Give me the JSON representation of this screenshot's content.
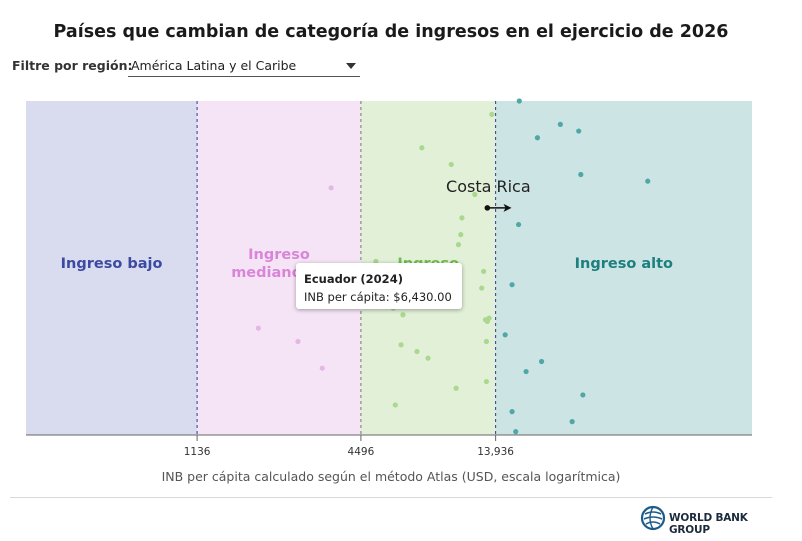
{
  "title": "Países que cambian de categoría de ingresos en el ejercicio de 2026",
  "filter": {
    "label": "Filtre por región:",
    "selected": "América Latina y el Caribe"
  },
  "logo": {
    "icon": "globe-icon",
    "text": "WORLD BANK GROUP"
  },
  "tooltip": {
    "title": "Ecuador (2024)",
    "body": "INB per cápita: $6,430.00"
  },
  "chart_data": {
    "type": "scatter",
    "title": "Países que cambian de categoría de ingresos en el ejercicio de 2026",
    "xlabel": "INB per cápita calculado según el método Atlas (USD, escala logarítmica)",
    "ylabel": "",
    "xscale": "log",
    "xlim": [
      270,
      120000
    ],
    "grid": false,
    "thresholds": [
      {
        "value": 1136,
        "label": "1136"
      },
      {
        "value": 4496,
        "label": "4496"
      },
      {
        "value": 13936,
        "label": "13,936"
      }
    ],
    "bands": [
      {
        "name": "Ingreso bajo",
        "range": [
          270,
          1136
        ],
        "fill": "#d9dbef",
        "text_color": "#3d4aa1"
      },
      {
        "name": "Ingreso mediano bajo",
        "range": [
          1136,
          4496
        ],
        "fill": "#f5e4f6",
        "text_color": "#d985d8"
      },
      {
        "name": "Ingreso mediano alto",
        "range": [
          4496,
          13936
        ],
        "fill": "#e2f0d8",
        "text_color": "#6fbf4c"
      },
      {
        "name": "Ingreso alto",
        "range": [
          13936,
          120000
        ],
        "fill": "#cce4e4",
        "text_color": "#1e7f7f"
      }
    ],
    "band_label_lines": [
      [
        "Ingreso bajo"
      ],
      [
        "Ingreso",
        "mediano ba"
      ],
      [
        "Ingreso"
      ],
      [
        "Ingreso alto"
      ]
    ],
    "highlight": {
      "label": "Costa Rica",
      "from": 13000,
      "to": 15400,
      "y": 0.68
    },
    "series": [
      {
        "color": "#e3b8e4",
        "points": [
          {
            "x": 3500,
            "y": 0.74
          },
          {
            "x": 1900,
            "y": 0.32
          },
          {
            "x": 2650,
            "y": 0.28
          },
          {
            "x": 3250,
            "y": 0.2
          },
          {
            "x": 4300,
            "y": 0.45
          }
        ]
      },
      {
        "color": "#a9d88e",
        "points": [
          {
            "x": 6430,
            "y": 0.4
          },
          {
            "x": 13500,
            "y": 0.96
          },
          {
            "x": 7500,
            "y": 0.86
          },
          {
            "x": 9600,
            "y": 0.81
          },
          {
            "x": 11700,
            "y": 0.72
          },
          {
            "x": 10500,
            "y": 0.65
          },
          {
            "x": 10400,
            "y": 0.6
          },
          {
            "x": 10200,
            "y": 0.57
          },
          {
            "x": 5100,
            "y": 0.52
          },
          {
            "x": 12600,
            "y": 0.49
          },
          {
            "x": 12400,
            "y": 0.44
          },
          {
            "x": 5900,
            "y": 0.38
          },
          {
            "x": 6400,
            "y": 0.36
          },
          {
            "x": 13200,
            "y": 0.35
          },
          {
            "x": 13000,
            "y": 0.34
          },
          {
            "x": 12800,
            "y": 0.345
          },
          {
            "x": 12900,
            "y": 0.28
          },
          {
            "x": 7200,
            "y": 0.25
          },
          {
            "x": 7900,
            "y": 0.23
          },
          {
            "x": 6300,
            "y": 0.27
          },
          {
            "x": 12900,
            "y": 0.16
          },
          {
            "x": 10000,
            "y": 0.14
          },
          {
            "x": 6000,
            "y": 0.09
          }
        ]
      },
      {
        "color": "#4fa8a6",
        "points": [
          {
            "x": 17000,
            "y": 1.0
          },
          {
            "x": 24000,
            "y": 0.93
          },
          {
            "x": 28000,
            "y": 0.91
          },
          {
            "x": 19800,
            "y": 0.89
          },
          {
            "x": 28500,
            "y": 0.78
          },
          {
            "x": 50000,
            "y": 0.76
          },
          {
            "x": 16900,
            "y": 0.63
          },
          {
            "x": 16000,
            "y": 0.45
          },
          {
            "x": 15100,
            "y": 0.3
          },
          {
            "x": 20500,
            "y": 0.22
          },
          {
            "x": 18000,
            "y": 0.19
          },
          {
            "x": 29000,
            "y": 0.12
          },
          {
            "x": 16000,
            "y": 0.07
          },
          {
            "x": 26500,
            "y": 0.04
          },
          {
            "x": 16500,
            "y": 0.01
          }
        ]
      }
    ]
  }
}
